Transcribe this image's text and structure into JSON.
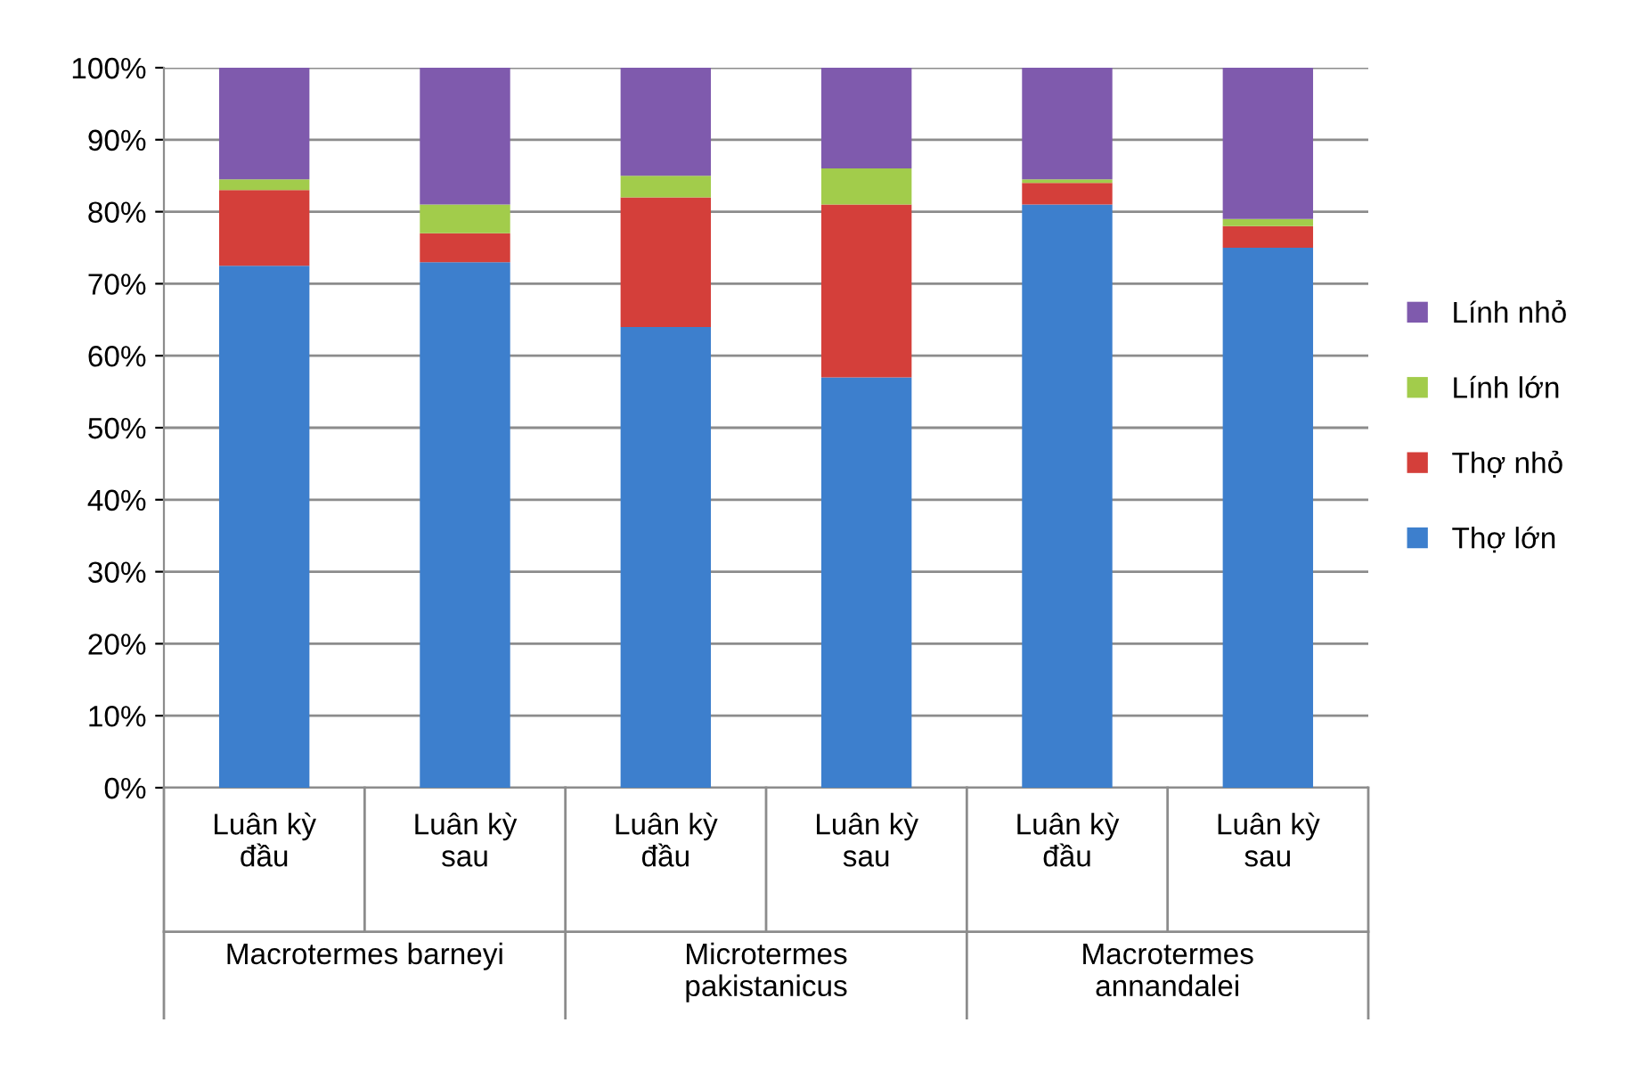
{
  "chart_data": {
    "type": "bar",
    "stacked": true,
    "categories": [
      "Luân kỳ\nđầu",
      "Luân kỳ\nsau",
      "Luân kỳ\nđầu",
      "Luân kỳ\nsau",
      "Luân kỳ\nđầu",
      "Luân kỳ\nsau"
    ],
    "annotations": [
      "Macrotermes barneyi",
      "Microtermes\npakistanicus",
      "Macrotermes\nannandalei"
    ],
    "series": [
      {
        "name": "Thợ lớn",
        "color": "#3d7fcd",
        "values": [
          72.5,
          73,
          64,
          57,
          81,
          75
        ]
      },
      {
        "name": "Thợ nhỏ",
        "color": "#d43f3a",
        "values": [
          10.5,
          4,
          18,
          24,
          3,
          3
        ]
      },
      {
        "name": "Lính lớn",
        "color": "#a2cc4b",
        "values": [
          1.5,
          4,
          3,
          5,
          0.5,
          1
        ]
      },
      {
        "name": "Lính nhỏ",
        "color": "#7f5aad",
        "values": [
          15.5,
          19,
          15,
          14,
          15.5,
          21
        ]
      }
    ],
    "ylim": [
      0,
      100
    ],
    "yticks": [
      {
        "value": 0,
        "label": "0%"
      },
      {
        "value": 10,
        "label": "10%"
      },
      {
        "value": 20,
        "label": "20%"
      },
      {
        "value": 30,
        "label": "30%"
      },
      {
        "value": 40,
        "label": "40%"
      },
      {
        "value": 50,
        "label": "50%"
      },
      {
        "value": 60,
        "label": "60%"
      },
      {
        "value": 70,
        "label": "70%"
      },
      {
        "value": 80,
        "label": "80%"
      },
      {
        "value": 90,
        "label": "90%"
      },
      {
        "value": 100,
        "label": "100%"
      }
    ],
    "grid": "y",
    "legend": "right"
  }
}
